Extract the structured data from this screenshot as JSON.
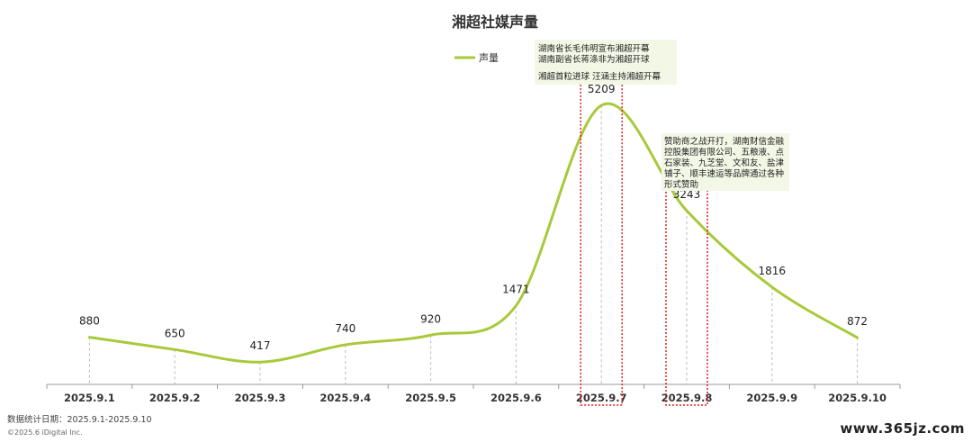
{
  "chart_data": {
    "type": "line",
    "title": "湘超社媒声量",
    "categories": [
      "2025.9.1",
      "2025.9.2",
      "2025.9.3",
      "2025.9.4",
      "2025.9.5",
      "2025.9.6",
      "2025.9.7",
      "2025.9.8",
      "2025.9.9",
      "2025.9.10"
    ],
    "series": [
      {
        "name": "声量",
        "values": [
          880,
          650,
          417,
          740,
          920,
          1471,
          5209,
          3243,
          1816,
          872
        ],
        "color": "#a8c93a"
      }
    ],
    "value_labels": [
      "880",
      "650",
      "417",
      "740",
      "920",
      "1471",
      "5209",
      "3243",
      "1816",
      "872"
    ],
    "ylim": [
      0,
      6000
    ],
    "grid": false,
    "legend_position": "top-center",
    "smooth": true,
    "highlighted_categories": [
      "2025.9.7",
      "2025.9.8"
    ],
    "highlight_color": "#e02020",
    "annotations": [
      {
        "category": "2025.9.7",
        "lines": [
          "湖南省长毛伟明宣布湘超开幕",
          "湖南副省长蒋涤非为湘超开球"
        ]
      },
      {
        "category": "2025.9.7",
        "lines": [
          "湘超首粒进球   汪涵主持湘超开幕"
        ]
      },
      {
        "category": "2025.9.8",
        "lines": [
          "赞助商之战开打，湖南财信金融",
          "控股集团有限公司、五粮液、点",
          "石家装、九芝堂、文和友、盐津",
          "铺子、顺丰速运等品牌通过各种",
          "形式赞助"
        ]
      }
    ]
  },
  "footer": {
    "source": "数据统计日期：2025.9.1-2025.9.10",
    "copyright": "©2025.6 iDigital Inc."
  },
  "watermark": "www.365jz.com"
}
